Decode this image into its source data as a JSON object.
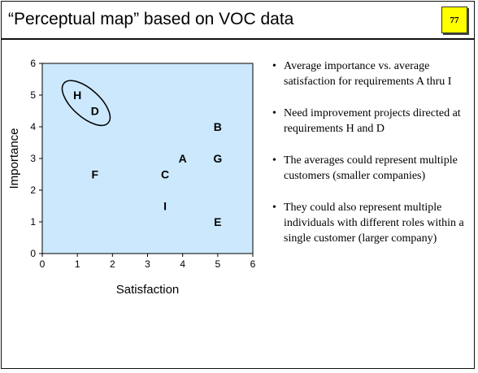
{
  "slide": {
    "title": "“Perceptual map” based on VOC data",
    "page_number": "77"
  },
  "bullets": [
    "Average importance vs. average satisfaction for requirements A thru I",
    "Need improvement projects directed at requirements H and D",
    "The averages could represent multiple customers (smaller companies)",
    "They could also represent multiple individuals with different roles within a single customer (larger company)"
  ],
  "chart_data": {
    "type": "scatter",
    "xlabel": "Satisfaction",
    "ylabel": "Importance",
    "xlim": [
      0,
      6
    ],
    "ylim": [
      0,
      6
    ],
    "xticks": [
      0,
      1,
      2,
      3,
      4,
      5,
      6
    ],
    "yticks": [
      0,
      1,
      2,
      3,
      4,
      5,
      6
    ],
    "grid": false,
    "plot_background": "#cce8fd",
    "points": [
      {
        "label": "H",
        "x": 1.0,
        "y": 5.0
      },
      {
        "label": "D",
        "x": 1.5,
        "y": 4.5
      },
      {
        "label": "B",
        "x": 5.0,
        "y": 4.0
      },
      {
        "label": "A",
        "x": 4.0,
        "y": 3.0
      },
      {
        "label": "G",
        "x": 5.0,
        "y": 3.0
      },
      {
        "label": "F",
        "x": 1.5,
        "y": 2.5
      },
      {
        "label": "C",
        "x": 3.5,
        "y": 2.5
      },
      {
        "label": "I",
        "x": 3.5,
        "y": 1.5
      },
      {
        "label": "E",
        "x": 5.0,
        "y": 1.0
      }
    ],
    "highlight": {
      "encircled": [
        "H",
        "D"
      ]
    }
  }
}
